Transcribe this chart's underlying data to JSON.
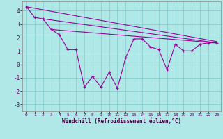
{
  "xlabel": "Windchill (Refroidissement éolien,°C)",
  "background_color": "#b0e8e8",
  "grid_color": "#80c8c8",
  "line_color": "#990099",
  "xlim": [
    -0.5,
    23.5
  ],
  "ylim": [
    -3.5,
    4.7
  ],
  "yticks": [
    -3,
    -2,
    -1,
    0,
    1,
    2,
    3,
    4
  ],
  "xticks": [
    0,
    1,
    2,
    3,
    4,
    5,
    6,
    7,
    8,
    9,
    10,
    11,
    12,
    13,
    14,
    15,
    16,
    17,
    18,
    19,
    20,
    21,
    22,
    23
  ],
  "line1_x": [
    0,
    23
  ],
  "line1_y": [
    4.3,
    1.7
  ],
  "line2_x": [
    2,
    23
  ],
  "line2_y": [
    3.4,
    1.6
  ],
  "line3_x": [
    3,
    23
  ],
  "line3_y": [
    2.6,
    1.6
  ],
  "main_x": [
    0,
    1,
    2,
    3,
    4,
    5,
    6,
    7,
    8,
    9,
    10,
    11,
    12,
    13,
    14,
    15,
    16,
    17,
    18,
    19,
    20,
    21,
    22,
    23
  ],
  "main_y": [
    4.3,
    3.5,
    3.4,
    2.6,
    2.2,
    1.1,
    1.1,
    -1.7,
    -0.9,
    -1.7,
    -0.6,
    -1.8,
    0.5,
    1.9,
    1.9,
    1.3,
    1.1,
    -0.4,
    1.5,
    1.0,
    1.0,
    1.5,
    1.6,
    1.6
  ]
}
